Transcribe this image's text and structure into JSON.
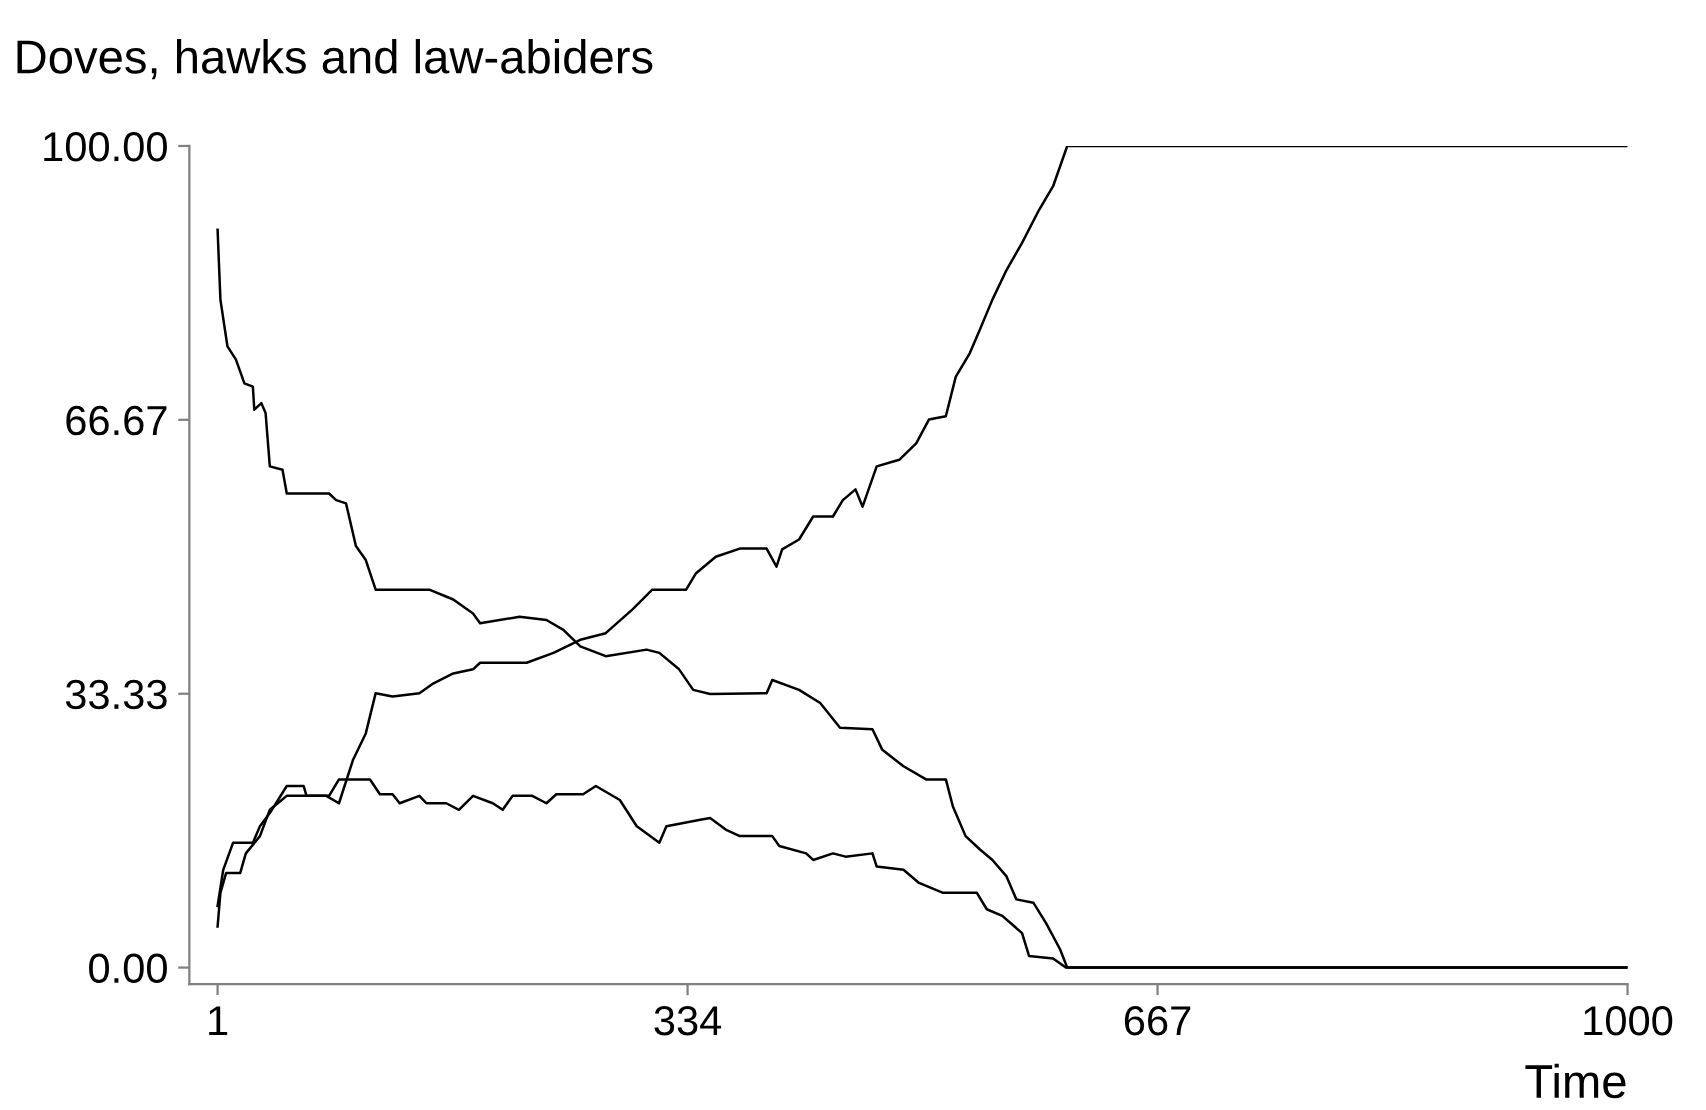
{
  "chart_data": {
    "type": "line",
    "title": "Doves, hawks and law-abiders",
    "xlabel": "Time",
    "xlim": [
      -19,
      1000
    ],
    "ylim": [
      -2,
      100
    ],
    "xticks": [
      1,
      334,
      667,
      1000
    ],
    "yticks": [
      {
        "value": 0,
        "label": "0.00"
      },
      {
        "value": 33.33,
        "label": "33.33"
      },
      {
        "value": 66.67,
        "label": "66.67"
      },
      {
        "value": 100,
        "label": "100.00"
      }
    ],
    "grid": false,
    "marker": "none",
    "line_style": "solid",
    "series": [
      {
        "color": "#000000",
        "x": [
          1,
          3,
          8,
          14,
          20,
          26,
          27,
          32,
          35,
          38,
          47,
          50,
          80,
          85,
          92,
          99,
          106,
          113,
          151,
          168,
          182,
          187,
          215,
          234,
          246,
          258,
          276,
          305,
          314,
          328,
          338,
          350,
          390,
          394,
          413,
          428,
          442,
          465,
          472,
          487,
          503,
          517,
          522,
          531,
          541,
          550,
          560,
          567,
          579,
          588,
          598,
          603,
          1000
        ],
        "values": [
          89.8,
          81.3,
          75.6,
          74.0,
          71.1,
          70.7,
          67.9,
          68.7,
          67.5,
          61.0,
          60.6,
          57.7,
          57.7,
          56.9,
          56.5,
          51.3,
          49.6,
          46.0,
          46.0,
          44.8,
          43.1,
          41.9,
          42.7,
          42.3,
          41.1,
          39.1,
          37.9,
          38.7,
          38.3,
          36.3,
          33.8,
          33.3,
          33.4,
          35.0,
          33.8,
          32.2,
          29.2,
          29.0,
          26.5,
          24.5,
          22.9,
          22.9,
          19.6,
          16.0,
          14.4,
          13.1,
          11.1,
          8.3,
          7.9,
          5.4,
          2.2,
          0,
          0
        ]
      },
      {
        "color": "#000000",
        "x": [
          1,
          3,
          7,
          17,
          21,
          31,
          38,
          50,
          78,
          87,
          97,
          106,
          113,
          125,
          144,
          154,
          168,
          182,
          187,
          220,
          239,
          258,
          276,
          295,
          309,
          333,
          340,
          354,
          371,
          390,
          397,
          401,
          413,
          423,
          437,
          444,
          453,
          458,
          468,
          484,
          496,
          505,
          517,
          524,
          534,
          541,
          550,
          560,
          571,
          583,
          593,
          603,
          1000
        ],
        "values": [
          5.0,
          9.1,
          11.5,
          11.5,
          13.9,
          16.0,
          19.2,
          20.9,
          20.9,
          20.0,
          25.3,
          28.5,
          33.4,
          33.0,
          33.4,
          34.6,
          35.8,
          36.3,
          37.1,
          37.1,
          38.3,
          39.9,
          40.7,
          43.6,
          46.0,
          46.0,
          48.0,
          50.0,
          51.0,
          51.0,
          48.8,
          50.9,
          52.1,
          54.9,
          54.9,
          56.9,
          58.2,
          56.1,
          61.0,
          61.8,
          63.8,
          66.7,
          67.1,
          71.9,
          74.8,
          77.6,
          81.3,
          84.9,
          88.2,
          92.2,
          95.1,
          100,
          100
        ]
      },
      {
        "color": "#000000",
        "x": [
          1,
          5,
          12,
          26,
          31,
          38,
          50,
          62,
          64,
          80,
          87,
          109,
          116,
          125,
          130,
          144,
          149,
          163,
          172,
          182,
          196,
          203,
          210,
          224,
          234,
          241,
          260,
          269,
          286,
          298,
          314,
          319,
          343,
          350,
          361,
          371,
          394,
          399,
          418,
          423,
          437,
          446,
          465,
          468,
          487,
          498,
          515,
          539,
          546,
          557,
          571,
          576,
          593,
          602,
          1000
        ],
        "values": [
          7.5,
          11.9,
          15.2,
          15.2,
          17.2,
          18.8,
          22.1,
          22.1,
          20.9,
          20.9,
          22.9,
          22.9,
          21.1,
          21.1,
          20.0,
          20.9,
          20.0,
          20.0,
          19.2,
          20.9,
          20.0,
          19.2,
          20.9,
          20.9,
          20.0,
          21.1,
          21.1,
          22.1,
          20.4,
          17.2,
          15.2,
          17.2,
          18.0,
          18.2,
          16.8,
          16.0,
          16.0,
          14.8,
          13.9,
          13.1,
          13.9,
          13.5,
          13.9,
          12.3,
          11.9,
          10.3,
          9.1,
          9.1,
          7.1,
          6.3,
          4.2,
          1.4,
          1.1,
          0,
          0
        ]
      }
    ]
  }
}
